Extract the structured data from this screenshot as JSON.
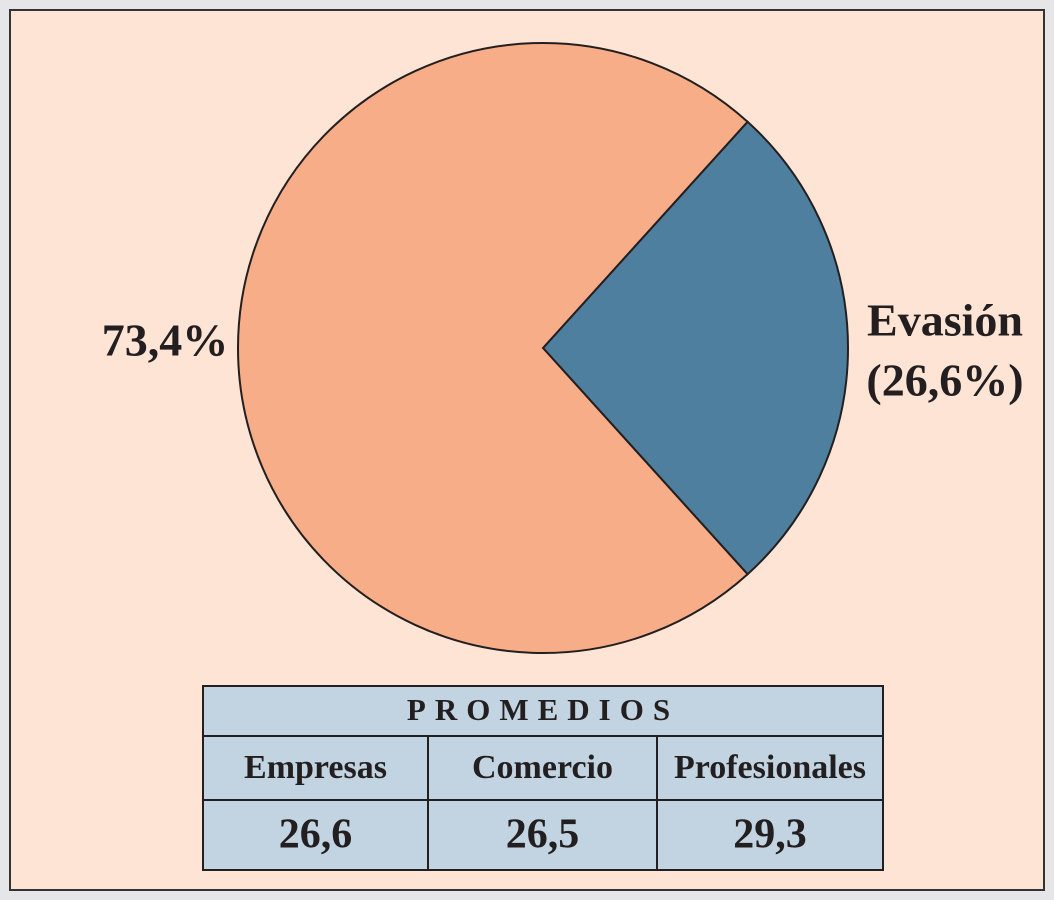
{
  "chart_data": {
    "type": "pie",
    "categories": [
      null,
      "Evasión"
    ],
    "values": [
      73.4,
      26.6
    ],
    "value_labels": [
      "73,4%",
      "(26,6%)"
    ],
    "colors": [
      "#f7ad87",
      "#4e7f9f"
    ]
  },
  "table": {
    "title": "PROMEDIOS",
    "columns": [
      "Empresas",
      "Comercio",
      "Profesionales"
    ],
    "rows": [
      [
        "26,6",
        "26,5",
        "29,3"
      ]
    ]
  }
}
